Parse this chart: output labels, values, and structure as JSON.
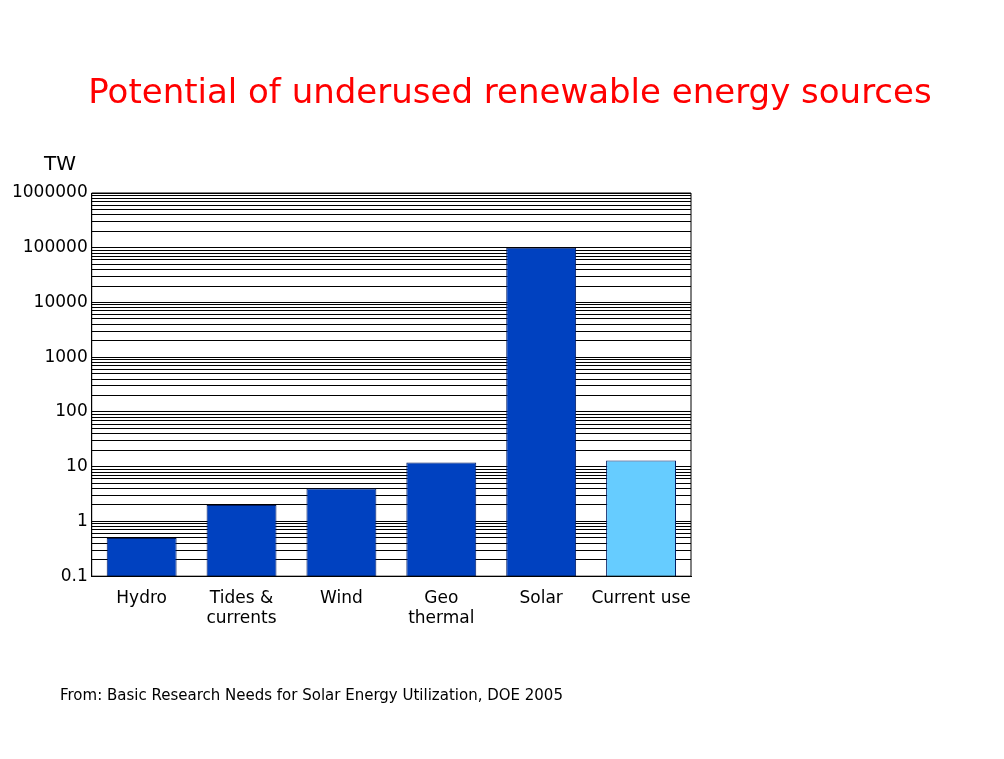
{
  "chart_data": {
    "type": "bar",
    "title": "Potential of underused renewable energy sources",
    "ylabel": "TW",
    "categories": [
      "Hydro",
      "Tides &\ncurrents",
      "Wind",
      "Geo\nthermal",
      "Solar",
      "Current use"
    ],
    "values": [
      0.5,
      2,
      4,
      12,
      100000,
      13
    ],
    "colors": [
      "#0041c0",
      "#0041c0",
      "#0041c0",
      "#0041c0",
      "#0041c0",
      "#66ccff"
    ],
    "log": true,
    "ylim": [
      0.1,
      1000000
    ],
    "yticks": [
      0.1,
      {
        "value": 0.2,
        "label": null
      },
      {
        "value": 0.3,
        "label": null
      },
      {
        "value": 0.4,
        "label": null
      },
      {
        "value": 0.5,
        "label": null
      },
      {
        "value": 0.6,
        "label": null
      },
      {
        "value": 0.7,
        "label": null
      },
      {
        "value": 0.8,
        "label": null
      },
      {
        "value": 0.9,
        "label": null
      },
      1,
      {
        "value": 2,
        "label": null
      },
      {
        "value": 3,
        "label": null
      },
      {
        "value": 4,
        "label": null
      },
      {
        "value": 5,
        "label": null
      },
      {
        "value": 6,
        "label": null
      },
      {
        "value": 7,
        "label": null
      },
      {
        "value": 8,
        "label": null
      },
      {
        "value": 9,
        "label": null
      },
      10,
      {
        "value": 20,
        "label": null
      },
      {
        "value": 30,
        "label": null
      },
      {
        "value": 40,
        "label": null
      },
      {
        "value": 50,
        "label": null
      },
      {
        "value": 60,
        "label": null
      },
      {
        "value": 70,
        "label": null
      },
      {
        "value": 80,
        "label": null
      },
      {
        "value": 90,
        "label": null
      },
      100,
      {
        "value": 200,
        "label": null
      },
      {
        "value": 300,
        "label": null
      },
      {
        "value": 400,
        "label": null
      },
      {
        "value": 500,
        "label": null
      },
      {
        "value": 600,
        "label": null
      },
      {
        "value": 700,
        "label": null
      },
      {
        "value": 800,
        "label": null
      },
      {
        "value": 900,
        "label": null
      },
      1000,
      {
        "value": 2000,
        "label": null
      },
      {
        "value": 3000,
        "label": null
      },
      {
        "value": 4000,
        "label": null
      },
      {
        "value": 5000,
        "label": null
      },
      {
        "value": 6000,
        "label": null
      },
      {
        "value": 7000,
        "label": null
      },
      {
        "value": 8000,
        "label": null
      },
      {
        "value": 9000,
        "label": null
      },
      10000,
      {
        "value": 20000,
        "label": null
      },
      {
        "value": 30000,
        "label": null
      },
      {
        "value": 40000,
        "label": null
      },
      {
        "value": 50000,
        "label": null
      },
      {
        "value": 60000,
        "label": null
      },
      {
        "value": 70000,
        "label": null
      },
      {
        "value": 80000,
        "label": null
      },
      {
        "value": 90000,
        "label": null
      },
      100000,
      {
        "value": 200000,
        "label": null
      },
      {
        "value": 300000,
        "label": null
      },
      {
        "value": 400000,
        "label": null
      },
      {
        "value": 500000,
        "label": null
      },
      {
        "value": 600000,
        "label": null
      },
      {
        "value": 700000,
        "label": null
      },
      {
        "value": 800000,
        "label": null
      },
      {
        "value": 900000,
        "label": null
      },
      1000000
    ],
    "grid": "y",
    "legend": false,
    "annotations": [
      "From: Basic Research Needs for Solar Energy Utilization, DOE 2005"
    ]
  }
}
